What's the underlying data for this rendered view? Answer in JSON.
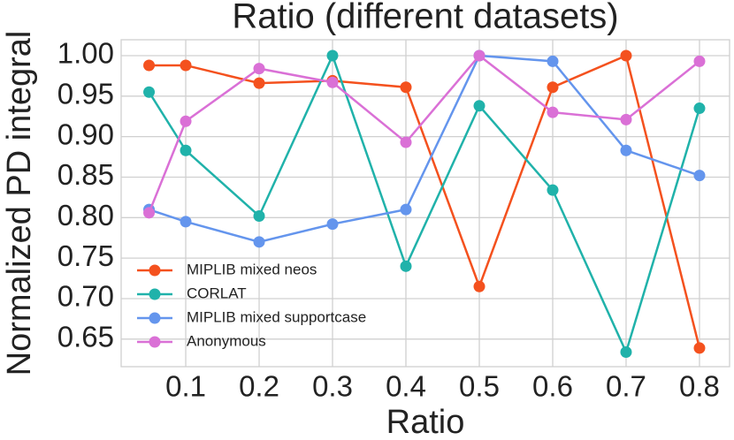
{
  "chart_data": {
    "type": "line",
    "title": "Ratio (different datasets)",
    "x_label": "Ratio",
    "y_label": "Normalized PD integral",
    "x": [
      0.05,
      0.1,
      0.2,
      0.3,
      0.4,
      0.5,
      0.6,
      0.7,
      0.8
    ],
    "series": [
      {
        "name": "MIPLIB mixed neos",
        "color": "#f4511e",
        "values": [
          0.988,
          0.988,
          0.966,
          0.969,
          0.961,
          0.715,
          0.961,
          1.0,
          0.639
        ]
      },
      {
        "name": "CORLAT",
        "color": "#20b2aa",
        "values": [
          0.955,
          0.883,
          0.802,
          1.0,
          0.74,
          0.938,
          0.834,
          0.634,
          0.935
        ]
      },
      {
        "name": "MIPLIB mixed supportcase",
        "color": "#6495ed",
        "values": [
          0.81,
          0.795,
          0.77,
          0.792,
          0.81,
          1.0,
          0.993,
          0.883,
          0.852
        ]
      },
      {
        "name": "Anonymous",
        "color": "#da70d6",
        "values": [
          0.806,
          0.919,
          0.984,
          0.967,
          0.893,
          1.0,
          0.93,
          0.921,
          0.993
        ]
      }
    ],
    "xlim": [
      0.012,
      0.841
    ],
    "ylim": [
      0.616,
      1.0196
    ],
    "xticks": [
      0.1,
      0.2,
      0.3,
      0.4,
      0.5,
      0.6,
      0.7,
      0.8
    ],
    "yticks": [
      {
        "value": 0.65,
        "label": "0.65"
      },
      {
        "value": 0.7,
        "label": "0.70"
      },
      {
        "value": 0.75,
        "label": "0.75"
      },
      {
        "value": 0.8,
        "label": "0.80"
      },
      {
        "value": 0.85,
        "label": "0.85"
      },
      {
        "value": 0.9,
        "label": "0.90"
      },
      {
        "value": 0.95,
        "label": "0.95"
      },
      {
        "value": 1.0,
        "label": "1.00"
      }
    ],
    "grid": true,
    "legend": "lower left"
  }
}
